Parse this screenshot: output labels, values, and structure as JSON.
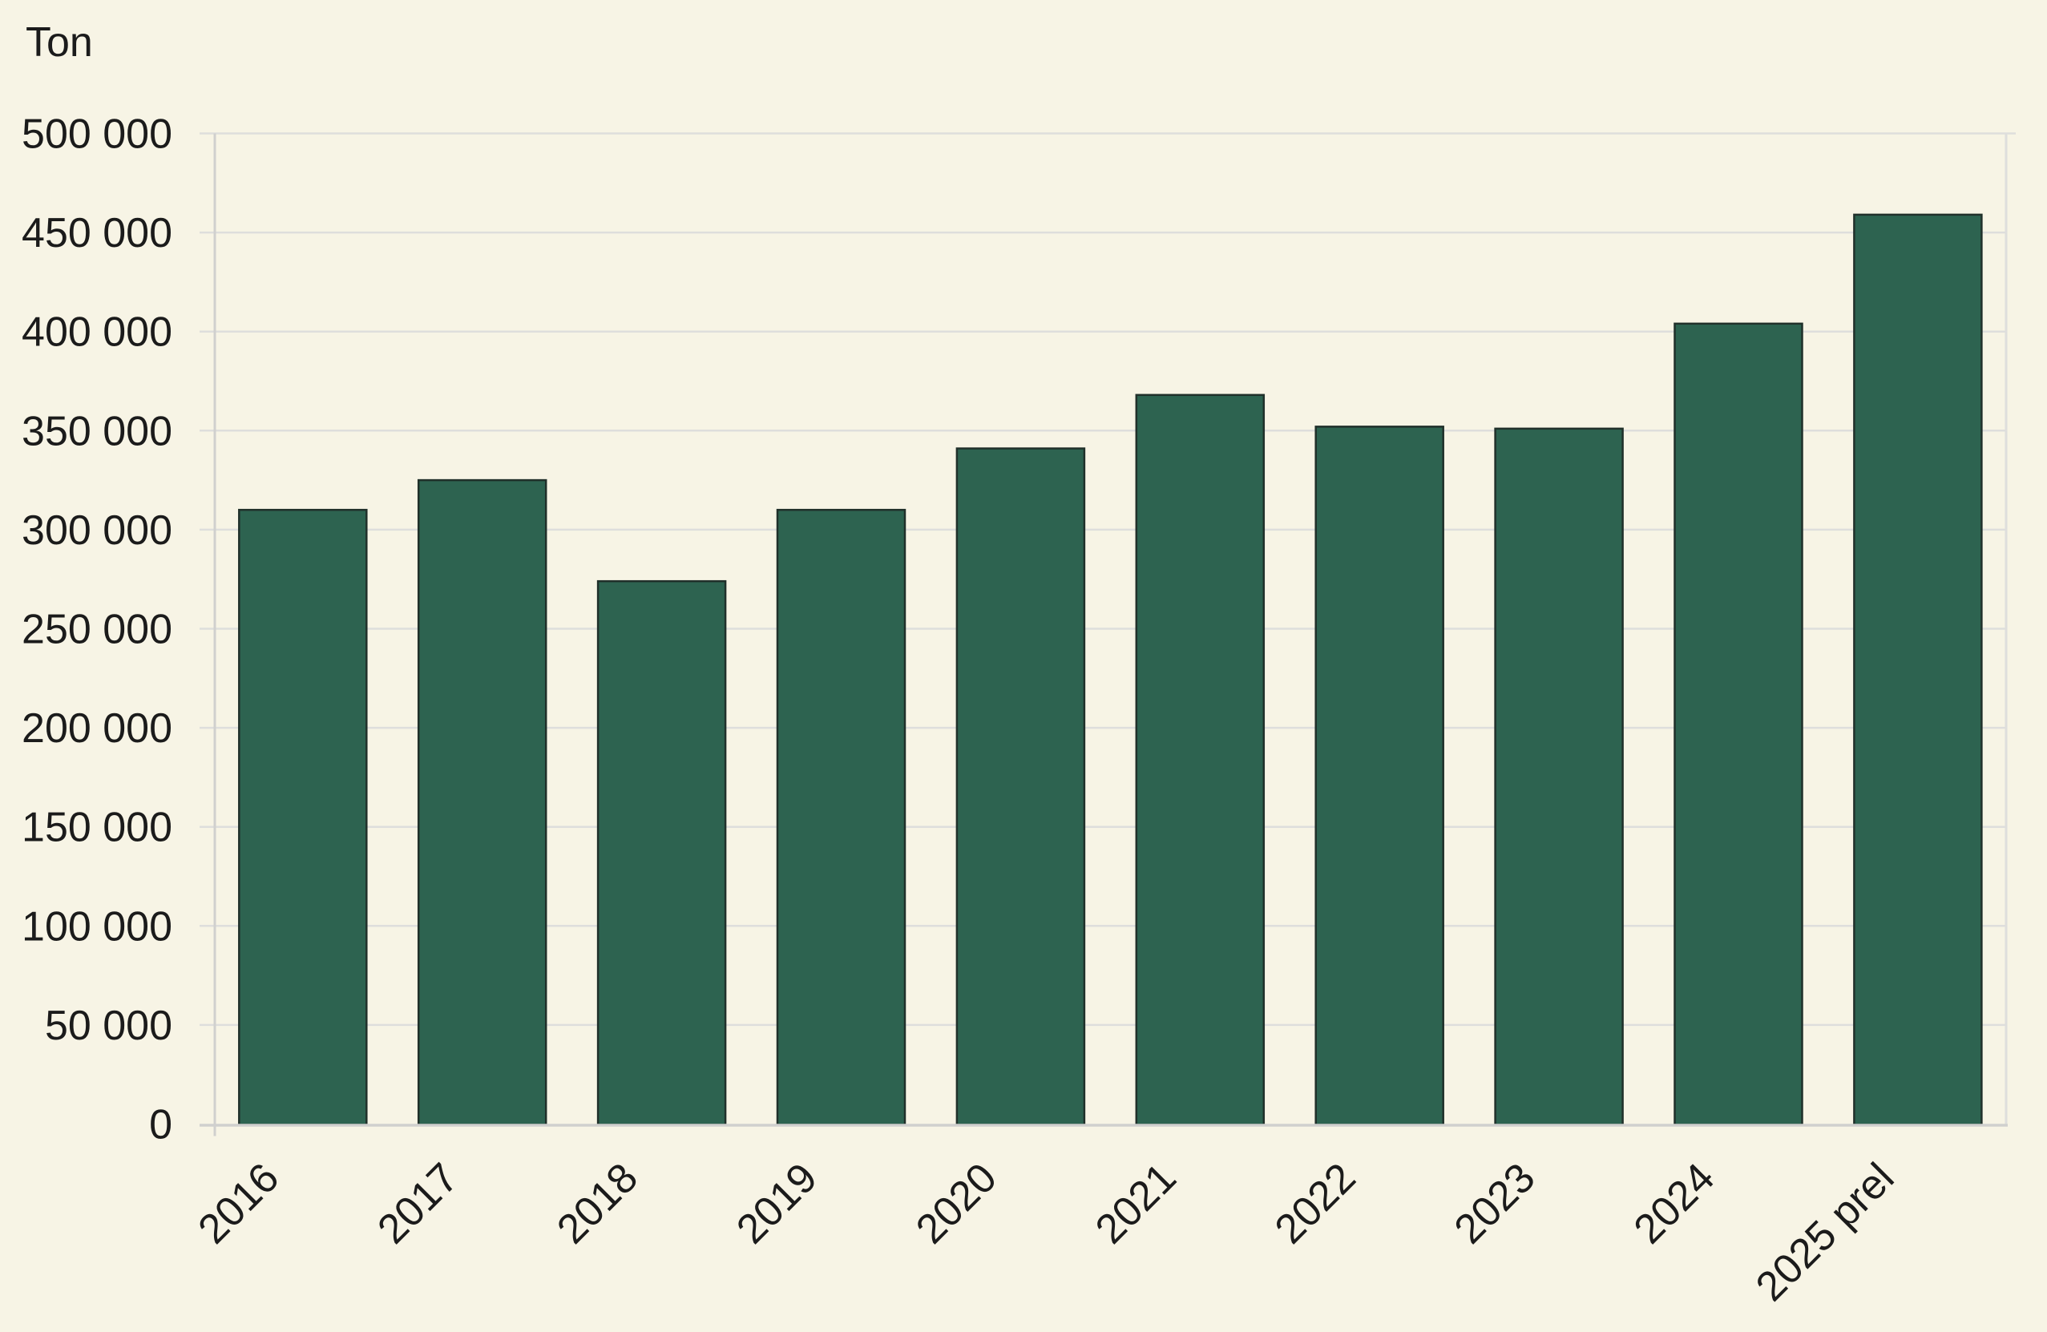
{
  "chart_data": {
    "type": "bar",
    "title": "",
    "ylabel": "Ton",
    "xlabel": "",
    "categories": [
      "2016",
      "2017",
      "2018",
      "2019",
      "2020",
      "2021",
      "2022",
      "2023",
      "2024",
      "2025 prel"
    ],
    "values": [
      310000,
      325000,
      274000,
      310000,
      341000,
      368000,
      352000,
      351000,
      404000,
      459000
    ],
    "ylim": [
      0,
      500000
    ],
    "ytick_step": 50000,
    "y_tick_labels": [
      "0",
      "50 000",
      "100 000",
      "150 000",
      "200 000",
      "250 000",
      "300 000",
      "350 000",
      "400 000",
      "450 000",
      "500 000"
    ],
    "grid": true,
    "legend": false,
    "bar_color": "#2d6350",
    "bar_border_color": "#20302a",
    "background_color": "#f7f4e5",
    "gridline_color": "#dededc",
    "axis_line_color": "#d0d0ce",
    "text_color": "#1b1b1b"
  }
}
